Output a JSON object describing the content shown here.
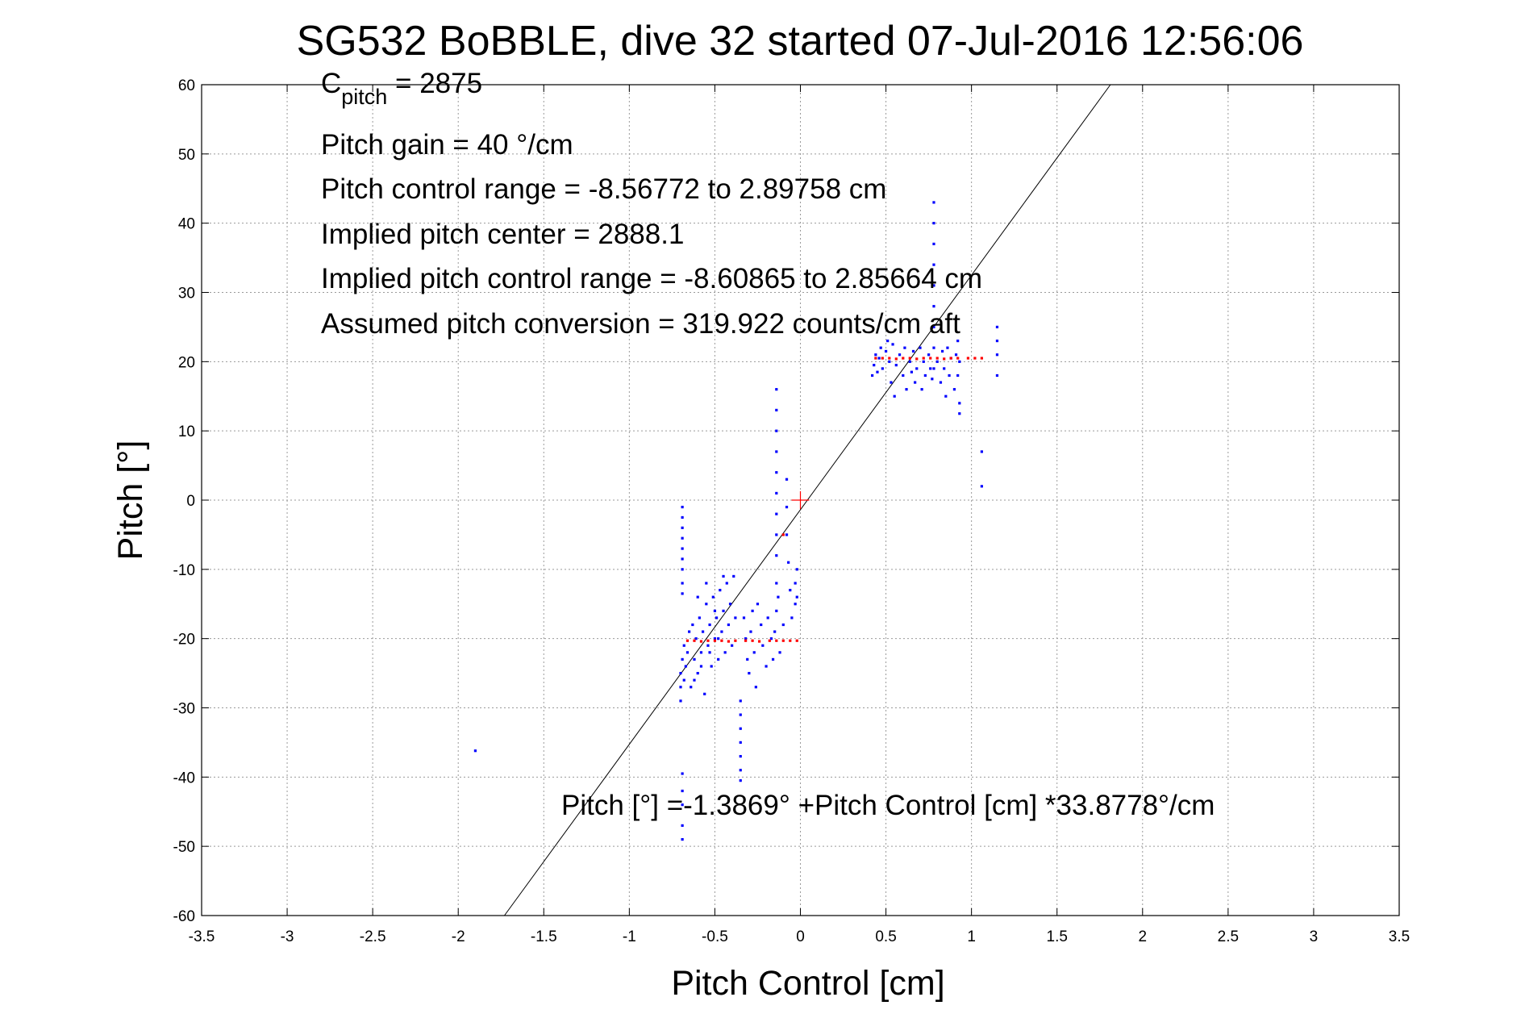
{
  "chart_data": {
    "type": "scatter",
    "title": "SG532 BoBBLE, dive 32 started 07-Jul-2016 12:56:06",
    "xlabel": "Pitch Control [cm]",
    "ylabel": "Pitch [°]",
    "xlim": [
      -3.5,
      3.5
    ],
    "ylim": [
      -60,
      60
    ],
    "xticks": [
      -3.5,
      -3,
      -2.5,
      -2,
      -1.5,
      -1,
      -0.5,
      0,
      0.5,
      1,
      1.5,
      2,
      2.5,
      3,
      3.5
    ],
    "yticks": [
      -60,
      -50,
      -40,
      -30,
      -20,
      -10,
      0,
      10,
      20,
      30,
      40,
      50,
      60
    ],
    "grid": true,
    "annotations": {
      "c_pitch_prefix": "C",
      "c_pitch_sub": "pitch",
      "c_pitch_value": " = 2875",
      "pitch_gain": "Pitch gain = 40 °/cm",
      "control_range": "Pitch control range = -8.56772 to 2.89758 cm",
      "implied_center": "Implied pitch center = 2888.1",
      "implied_range": "Implied pitch control range = -8.60865 to 2.85664 cm",
      "conversion": "Assumed pitch conversion = 319.922 counts/cm aft",
      "fit_equation": "Pitch [°] =-1.3869° +Pitch Control [cm] *33.8778°/cm"
    },
    "fit_line": {
      "intercept": -1.3869,
      "slope": 33.8778,
      "color": "#000000"
    },
    "center_marker": {
      "x": 0,
      "y": 0,
      "color": "#ff0000"
    },
    "series": [
      {
        "color": "#0000ff",
        "points": [
          [
            -1.9,
            -36.2
          ],
          [
            -0.69,
            -49
          ],
          [
            -0.69,
            -47
          ],
          [
            -0.69,
            -44
          ],
          [
            -0.69,
            -42
          ],
          [
            -0.69,
            -39.5
          ],
          [
            -0.69,
            -1
          ],
          [
            -0.69,
            -2.5
          ],
          [
            -0.69,
            -4
          ],
          [
            -0.69,
            -5.5
          ],
          [
            -0.69,
            -7
          ],
          [
            -0.69,
            -8.5
          ],
          [
            -0.69,
            -10
          ],
          [
            -0.69,
            -12
          ],
          [
            -0.69,
            -13.5
          ],
          [
            -0.7,
            -25
          ],
          [
            -0.7,
            -27
          ],
          [
            -0.7,
            -29
          ],
          [
            -0.69,
            -23
          ],
          [
            -0.68,
            -21
          ],
          [
            -0.68,
            -26
          ],
          [
            -0.67,
            -24
          ],
          [
            -0.66,
            -22
          ],
          [
            -0.65,
            -19
          ],
          [
            -0.64,
            -27
          ],
          [
            -0.63,
            -18
          ],
          [
            -0.62,
            -23
          ],
          [
            -0.61,
            -20
          ],
          [
            -0.6,
            -25
          ],
          [
            -0.59,
            -17
          ],
          [
            -0.58,
            -22
          ],
          [
            -0.57,
            -19
          ],
          [
            -0.56,
            -28
          ],
          [
            -0.55,
            -15
          ],
          [
            -0.54,
            -21
          ],
          [
            -0.53,
            -18
          ],
          [
            -0.52,
            -24
          ],
          [
            -0.51,
            -14
          ],
          [
            -0.5,
            -20
          ],
          [
            -0.49,
            -17
          ],
          [
            -0.48,
            -23
          ],
          [
            -0.47,
            -13
          ],
          [
            -0.46,
            -19
          ],
          [
            -0.45,
            -16
          ],
          [
            -0.44,
            -22
          ],
          [
            -0.43,
            -12
          ],
          [
            -0.42,
            -18
          ],
          [
            -0.41,
            -15
          ],
          [
            -0.4,
            -21
          ],
          [
            -0.39,
            -11
          ],
          [
            -0.38,
            -17
          ],
          [
            -0.6,
            -14
          ],
          [
            -0.55,
            -12
          ],
          [
            -0.5,
            -16
          ],
          [
            -0.45,
            -11
          ],
          [
            -0.62,
            -26
          ],
          [
            -0.58,
            -24
          ],
          [
            -0.53,
            -22
          ],
          [
            -0.48,
            -20
          ],
          [
            -0.35,
            -29
          ],
          [
            -0.35,
            -31
          ],
          [
            -0.35,
            -33
          ],
          [
            -0.35,
            -35
          ],
          [
            -0.35,
            -37
          ],
          [
            -0.35,
            -39
          ],
          [
            -0.35,
            -40.5
          ],
          [
            -0.33,
            -17
          ],
          [
            -0.32,
            -20
          ],
          [
            -0.31,
            -23
          ],
          [
            -0.3,
            -25
          ],
          [
            -0.29,
            -19
          ],
          [
            -0.28,
            -16
          ],
          [
            -0.27,
            -22
          ],
          [
            -0.26,
            -27
          ],
          [
            -0.25,
            -15
          ],
          [
            -0.23,
            -18
          ],
          [
            -0.22,
            -21
          ],
          [
            -0.2,
            -24
          ],
          [
            -0.19,
            -17
          ],
          [
            -0.17,
            -20
          ],
          [
            -0.16,
            -23
          ],
          [
            -0.15,
            -19
          ],
          [
            -0.13,
            -14
          ],
          [
            -0.12,
            -22
          ],
          [
            -0.1,
            -18
          ],
          [
            -0.14,
            16
          ],
          [
            -0.14,
            13
          ],
          [
            -0.14,
            10
          ],
          [
            -0.14,
            7
          ],
          [
            -0.14,
            4
          ],
          [
            -0.14,
            1
          ],
          [
            -0.14,
            -2
          ],
          [
            -0.14,
            -5
          ],
          [
            -0.14,
            -8
          ],
          [
            -0.14,
            -12
          ],
          [
            -0.14,
            -16
          ],
          [
            -0.08,
            3
          ],
          [
            -0.08,
            -1
          ],
          [
            -0.08,
            -5
          ],
          [
            -0.07,
            -9
          ],
          [
            -0.06,
            -13
          ],
          [
            -0.05,
            -17
          ],
          [
            -0.03,
            -12
          ],
          [
            -0.03,
            -15
          ],
          [
            -0.02,
            -10
          ],
          [
            -0.02,
            -14
          ],
          [
            0.42,
            18
          ],
          [
            0.43,
            19.5
          ],
          [
            0.44,
            21
          ],
          [
            0.45,
            18.5
          ],
          [
            0.46,
            20.5
          ],
          [
            0.47,
            22
          ],
          [
            0.48,
            19
          ],
          [
            0.5,
            21.5
          ],
          [
            0.51,
            23
          ],
          [
            0.52,
            20
          ],
          [
            0.53,
            17
          ],
          [
            0.54,
            22.5
          ],
          [
            0.55,
            15
          ],
          [
            0.56,
            19.5
          ],
          [
            0.58,
            21
          ],
          [
            0.6,
            18
          ],
          [
            0.61,
            22
          ],
          [
            0.62,
            16
          ],
          [
            0.64,
            20
          ],
          [
            0.65,
            18.5
          ],
          [
            0.66,
            21.5
          ],
          [
            0.67,
            17
          ],
          [
            0.68,
            19
          ],
          [
            0.7,
            22
          ],
          [
            0.71,
            16
          ],
          [
            0.72,
            20
          ],
          [
            0.73,
            18
          ],
          [
            0.75,
            21
          ],
          [
            0.76,
            19
          ],
          [
            0.77,
            17.5
          ],
          [
            0.78,
            43
          ],
          [
            0.78,
            40
          ],
          [
            0.78,
            37
          ],
          [
            0.78,
            34
          ],
          [
            0.78,
            31
          ],
          [
            0.78,
            28
          ],
          [
            0.78,
            25
          ],
          [
            0.78,
            22
          ],
          [
            0.78,
            19
          ],
          [
            0.8,
            20
          ],
          [
            0.82,
            17
          ],
          [
            0.83,
            21.5
          ],
          [
            0.84,
            19
          ],
          [
            0.85,
            15
          ],
          [
            0.86,
            22
          ],
          [
            0.87,
            18
          ],
          [
            0.88,
            20.5
          ],
          [
            0.9,
            16
          ],
          [
            0.91,
            21
          ],
          [
            0.92,
            23
          ],
          [
            0.92,
            18
          ],
          [
            0.93,
            14
          ],
          [
            0.93,
            12.5
          ],
          [
            0.93,
            20
          ],
          [
            1.06,
            7
          ],
          [
            1.06,
            2
          ],
          [
            1.15,
            18
          ],
          [
            1.15,
            21
          ],
          [
            1.15,
            23
          ],
          [
            1.15,
            25
          ]
        ]
      },
      {
        "color": "#ff0000",
        "points": [
          [
            -0.66,
            -20.3
          ],
          [
            -0.62,
            -20.3
          ],
          [
            -0.58,
            -20.4
          ],
          [
            -0.54,
            -20.3
          ],
          [
            -0.5,
            -20.3
          ],
          [
            -0.46,
            -20.3
          ],
          [
            -0.42,
            -20.4
          ],
          [
            -0.38,
            -20.3
          ],
          [
            -0.32,
            -20.3
          ],
          [
            -0.28,
            -20.3
          ],
          [
            -0.24,
            -20.4
          ],
          [
            -0.18,
            -20.3
          ],
          [
            -0.14,
            -20.3
          ],
          [
            -0.1,
            -20.3
          ],
          [
            -0.06,
            -20.3
          ],
          [
            -0.02,
            -20.3
          ],
          [
            -0.1,
            -5
          ],
          [
            0.44,
            20.5
          ],
          [
            0.48,
            20.5
          ],
          [
            0.52,
            20.5
          ],
          [
            0.56,
            20.4
          ],
          [
            0.6,
            20.5
          ],
          [
            0.64,
            20.5
          ],
          [
            0.68,
            20.4
          ],
          [
            0.72,
            20.5
          ],
          [
            0.76,
            20.5
          ],
          [
            0.8,
            20.5
          ],
          [
            0.84,
            20.4
          ],
          [
            0.88,
            20.5
          ],
          [
            0.92,
            20.5
          ],
          [
            0.98,
            20.5
          ],
          [
            1.02,
            20.5
          ],
          [
            1.06,
            20.5
          ]
        ]
      }
    ]
  }
}
